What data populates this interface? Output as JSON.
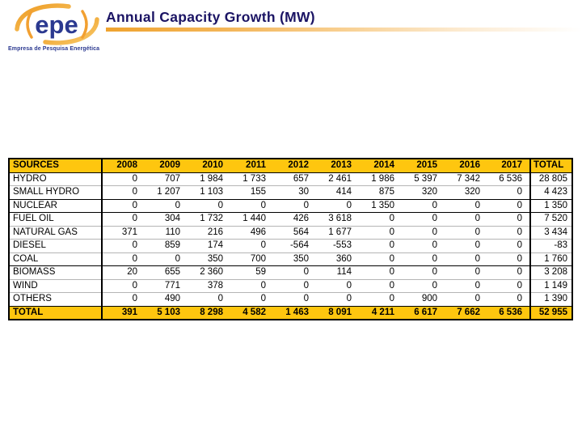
{
  "logo": {
    "text": "epe",
    "tagline": "Empresa de Pesquisa Energética"
  },
  "header": {
    "title": "Annual Capacity Growth (MW)"
  },
  "colors": {
    "title_navy": "#1B1464",
    "logo_navy": "#2B3990",
    "brand_orange": "#F2A031",
    "table_header_yellow": "#FEC60F",
    "grid_gray": "#B5B5B5"
  },
  "table": {
    "columns": [
      "SOURCES",
      "2008",
      "2009",
      "2010",
      "2011",
      "2012",
      "2013",
      "2014",
      "2015",
      "2016",
      "2017",
      "TOTAL"
    ],
    "rows": [
      {
        "label": "HYDRO",
        "values": [
          "0",
          "707",
          "1 984",
          "1 733",
          "657",
          "2 461",
          "1 986",
          "5 397",
          "7 342",
          "6 536",
          "28 805"
        ]
      },
      {
        "label": "SMALL HYDRO",
        "values": [
          "0",
          "1 207",
          "1 103",
          "155",
          "30",
          "414",
          "875",
          "320",
          "320",
          "0",
          "4 423"
        ]
      },
      {
        "label": "NUCLEAR",
        "values": [
          "0",
          "0",
          "0",
          "0",
          "0",
          "0",
          "1 350",
          "0",
          "0",
          "0",
          "1 350"
        ]
      },
      {
        "label": "FUEL OIL",
        "values": [
          "0",
          "304",
          "1 732",
          "1 440",
          "426",
          "3 618",
          "0",
          "0",
          "0",
          "0",
          "7 520"
        ]
      },
      {
        "label": "NATURAL GAS",
        "values": [
          "371",
          "110",
          "216",
          "496",
          "564",
          "1 677",
          "0",
          "0",
          "0",
          "0",
          "3 434"
        ]
      },
      {
        "label": "DIESEL",
        "values": [
          "0",
          "859",
          "174",
          "0",
          "-564",
          "-553",
          "0",
          "0",
          "0",
          "0",
          "-83"
        ]
      },
      {
        "label": "COAL",
        "values": [
          "0",
          "0",
          "350",
          "700",
          "350",
          "360",
          "0",
          "0",
          "0",
          "0",
          "1 760"
        ]
      },
      {
        "label": "BIOMASS",
        "values": [
          "20",
          "655",
          "2 360",
          "59",
          "0",
          "114",
          "0",
          "0",
          "0",
          "0",
          "3 208"
        ]
      },
      {
        "label": "WIND",
        "values": [
          "0",
          "771",
          "378",
          "0",
          "0",
          "0",
          "0",
          "0",
          "0",
          "0",
          "1 149"
        ]
      },
      {
        "label": "OTHERS",
        "values": [
          "0",
          "490",
          "0",
          "0",
          "0",
          "0",
          "0",
          "900",
          "0",
          "0",
          "1 390"
        ]
      }
    ],
    "total_row": {
      "label": "TOTAL",
      "values": [
        "391",
        "5 103",
        "8 298",
        "4 582",
        "1 463",
        "8 091",
        "4 211",
        "6 617",
        "7 662",
        "6 536",
        "52 955"
      ]
    }
  }
}
